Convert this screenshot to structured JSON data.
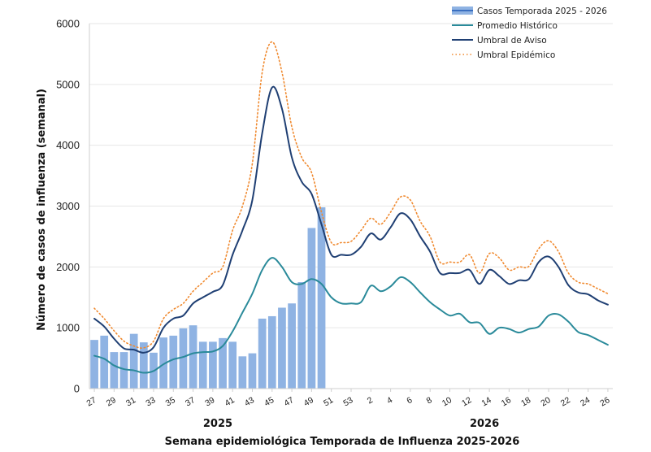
{
  "chart_data": {
    "type": "bar+line",
    "xlabel": "Semana epidemiológica Temporada de Influenza 2025-2026",
    "ylabel": "Número de casos de influenza (semanal)",
    "ylim": [
      0,
      6000
    ],
    "yticks": [
      "0",
      "1000",
      "2000",
      "3000",
      "4000",
      "5000",
      "6000"
    ],
    "year_labels": [
      {
        "label": "2025",
        "start_week": "27",
        "end_week": "52"
      },
      {
        "label": "2026",
        "start_week": "1",
        "end_week": "26"
      }
    ],
    "weeks": [
      "27",
      "28",
      "29",
      "30",
      "31",
      "32",
      "33",
      "34",
      "35",
      "36",
      "37",
      "38",
      "39",
      "40",
      "41",
      "42",
      "43",
      "44",
      "45",
      "46",
      "47",
      "48",
      "49",
      "50",
      "51",
      "52",
      "53",
      "1",
      "2",
      "3",
      "4",
      "5",
      "6",
      "7",
      "8",
      "9",
      "10",
      "11",
      "12",
      "13",
      "14",
      "15",
      "16",
      "17",
      "18",
      "19",
      "20",
      "21",
      "22",
      "23",
      "24",
      "25",
      "26"
    ],
    "x_tick_labels": [
      "27",
      "29",
      "31",
      "33",
      "35",
      "37",
      "39",
      "41",
      "43",
      "45",
      "47",
      "49",
      "51",
      "53",
      "2",
      "4",
      "6",
      "8",
      "10",
      "12",
      "14",
      "16",
      "18",
      "20",
      "22",
      "24",
      "26"
    ],
    "bars": {
      "name": "Casos Temporada 2025 - 2026",
      "color": "#8fb3e3",
      "values": [
        800,
        870,
        600,
        600,
        900,
        760,
        590,
        840,
        870,
        990,
        1040,
        770,
        770,
        830,
        770,
        530,
        580,
        1150,
        1190,
        1330,
        1400,
        1750,
        2640,
        2980
      ]
    },
    "series": [
      {
        "name": "Promedio Histórico",
        "color": "#2a8a9a",
        "style": "solid",
        "values": [
          540,
          490,
          380,
          320,
          300,
          260,
          290,
          400,
          480,
          520,
          580,
          600,
          610,
          700,
          940,
          1250,
          1560,
          1950,
          2150,
          2000,
          1750,
          1720,
          1800,
          1720,
          1500,
          1400,
          1400,
          1420,
          1690,
          1600,
          1680,
          1830,
          1750,
          1580,
          1420,
          1300,
          1200,
          1230,
          1090,
          1080,
          900,
          1000,
          980,
          920,
          980,
          1020,
          1200,
          1220,
          1100,
          930,
          880,
          800,
          720
        ]
      },
      {
        "name": "Umbral de Aviso",
        "color": "#1f3f73",
        "style": "solid",
        "values": [
          1150,
          1020,
          820,
          660,
          640,
          590,
          680,
          1000,
          1150,
          1200,
          1400,
          1500,
          1590,
          1700,
          2200,
          2600,
          3100,
          4200,
          4950,
          4600,
          3800,
          3400,
          3200,
          2700,
          2200,
          2200,
          2200,
          2330,
          2550,
          2450,
          2650,
          2880,
          2780,
          2500,
          2250,
          1900,
          1900,
          1900,
          1950,
          1720,
          1950,
          1850,
          1720,
          1780,
          1800,
          2080,
          2170,
          2000,
          1700,
          1580,
          1550,
          1450,
          1380
        ]
      },
      {
        "name": "Umbral Epidémico",
        "color": "#f08a30",
        "style": "dotted",
        "values": [
          1320,
          1150,
          950,
          780,
          700,
          670,
          780,
          1150,
          1300,
          1400,
          1600,
          1750,
          1900,
          2000,
          2600,
          3000,
          3700,
          5200,
          5700,
          5200,
          4300,
          3800,
          3550,
          2900,
          2400,
          2400,
          2420,
          2600,
          2800,
          2700,
          2900,
          3150,
          3100,
          2750,
          2500,
          2080,
          2080,
          2080,
          2200,
          1900,
          2220,
          2150,
          1950,
          2000,
          2010,
          2300,
          2430,
          2250,
          1900,
          1750,
          1720,
          1640,
          1560
        ]
      }
    ],
    "legend": {
      "position": "top-right",
      "entries": [
        "Casos Temporada 2025 - 2026",
        "Promedio Histórico",
        "Umbral de Aviso",
        "Umbral Epidémico"
      ]
    }
  }
}
